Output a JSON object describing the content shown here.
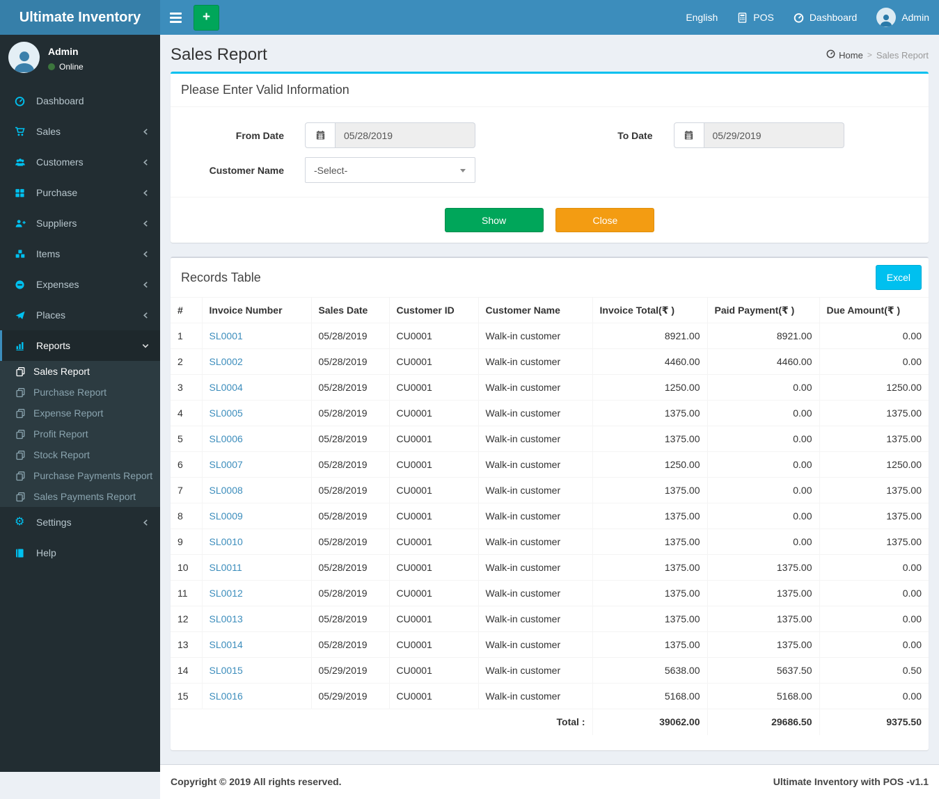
{
  "navbar": {
    "brand": "Ultimate Inventory",
    "items": [
      {
        "key": "language",
        "label": "English",
        "icon": null
      },
      {
        "key": "pos",
        "label": "POS",
        "icon": "calculator"
      },
      {
        "key": "dashboard",
        "label": "Dashboard",
        "icon": "tachometer"
      },
      {
        "key": "admin",
        "label": "Admin",
        "icon": "user-avatar"
      }
    ]
  },
  "sidebar": {
    "user": {
      "name": "Admin",
      "status": "Online"
    },
    "items": [
      {
        "key": "dashboard",
        "label": "Dashboard",
        "icon": "tachometer"
      },
      {
        "key": "sales",
        "label": "Sales",
        "icon": "cart",
        "chevron": "left"
      },
      {
        "key": "customers",
        "label": "Customers",
        "icon": "users",
        "chevron": "left"
      },
      {
        "key": "purchase",
        "label": "Purchase",
        "icon": "grid",
        "chevron": "left"
      },
      {
        "key": "suppliers",
        "label": "Suppliers",
        "icon": "user-plus",
        "chevron": "left"
      },
      {
        "key": "items",
        "label": "Items",
        "icon": "cubes",
        "chevron": "left"
      },
      {
        "key": "expenses",
        "label": "Expenses",
        "icon": "minus-circle",
        "chevron": "left"
      },
      {
        "key": "places",
        "label": "Places",
        "icon": "paper-plane",
        "chevron": "left"
      },
      {
        "key": "reports",
        "label": "Reports",
        "icon": "bar-chart",
        "chevron": "down",
        "active": true,
        "submenu": [
          {
            "key": "sales-report",
            "label": "Sales Report",
            "icon": "copy",
            "active": true
          },
          {
            "key": "purchase-report",
            "label": "Purchase Report",
            "icon": "copy"
          },
          {
            "key": "expense-report",
            "label": "Expense Report",
            "icon": "copy"
          },
          {
            "key": "profit-report",
            "label": "Profit Report",
            "icon": "copy"
          },
          {
            "key": "stock-report",
            "label": "Stock Report",
            "icon": "copy"
          },
          {
            "key": "purchase-payments-report",
            "label": "Purchase Payments Report",
            "icon": "copy"
          },
          {
            "key": "sales-payments-report",
            "label": "Sales Payments Report",
            "icon": "copy"
          }
        ]
      },
      {
        "key": "settings",
        "label": "Settings",
        "icon": "gears",
        "chevron": "left"
      },
      {
        "key": "help",
        "label": "Help",
        "icon": "book"
      }
    ]
  },
  "page": {
    "title": "Sales Report",
    "breadcrumb": {
      "home": "Home",
      "separator": ">",
      "current": "Sales Report"
    }
  },
  "filter": {
    "title": "Please Enter Valid Information",
    "from_date": {
      "label": "From Date",
      "value": "05/28/2019"
    },
    "to_date": {
      "label": "To Date",
      "value": "05/29/2019"
    },
    "customer": {
      "label": "Customer Name",
      "value": "-Select-"
    },
    "show_label": "Show",
    "close_label": "Close"
  },
  "records": {
    "title": "Records Table",
    "excel_label": "Excel",
    "columns": [
      "#",
      "Invoice Number",
      "Sales Date",
      "Customer ID",
      "Customer Name",
      "Invoice Total(₹ )",
      "Paid Payment(₹ )",
      "Due Amount(₹ )"
    ],
    "rows": [
      {
        "n": "1",
        "invoice": "SL0001",
        "date": "05/28/2019",
        "customer_id": "CU0001",
        "customer_name": "Walk-in customer",
        "invoice_total": "8921.00",
        "paid": "8921.00",
        "due": "0.00"
      },
      {
        "n": "2",
        "invoice": "SL0002",
        "date": "05/28/2019",
        "customer_id": "CU0001",
        "customer_name": "Walk-in customer",
        "invoice_total": "4460.00",
        "paid": "4460.00",
        "due": "0.00"
      },
      {
        "n": "3",
        "invoice": "SL0004",
        "date": "05/28/2019",
        "customer_id": "CU0001",
        "customer_name": "Walk-in customer",
        "invoice_total": "1250.00",
        "paid": "0.00",
        "due": "1250.00"
      },
      {
        "n": "4",
        "invoice": "SL0005",
        "date": "05/28/2019",
        "customer_id": "CU0001",
        "customer_name": "Walk-in customer",
        "invoice_total": "1375.00",
        "paid": "0.00",
        "due": "1375.00"
      },
      {
        "n": "5",
        "invoice": "SL0006",
        "date": "05/28/2019",
        "customer_id": "CU0001",
        "customer_name": "Walk-in customer",
        "invoice_total": "1375.00",
        "paid": "0.00",
        "due": "1375.00"
      },
      {
        "n": "6",
        "invoice": "SL0007",
        "date": "05/28/2019",
        "customer_id": "CU0001",
        "customer_name": "Walk-in customer",
        "invoice_total": "1250.00",
        "paid": "0.00",
        "due": "1250.00"
      },
      {
        "n": "7",
        "invoice": "SL0008",
        "date": "05/28/2019",
        "customer_id": "CU0001",
        "customer_name": "Walk-in customer",
        "invoice_total": "1375.00",
        "paid": "0.00",
        "due": "1375.00"
      },
      {
        "n": "8",
        "invoice": "SL0009",
        "date": "05/28/2019",
        "customer_id": "CU0001",
        "customer_name": "Walk-in customer",
        "invoice_total": "1375.00",
        "paid": "0.00",
        "due": "1375.00"
      },
      {
        "n": "9",
        "invoice": "SL0010",
        "date": "05/28/2019",
        "customer_id": "CU0001",
        "customer_name": "Walk-in customer",
        "invoice_total": "1375.00",
        "paid": "0.00",
        "due": "1375.00"
      },
      {
        "n": "10",
        "invoice": "SL0011",
        "date": "05/28/2019",
        "customer_id": "CU0001",
        "customer_name": "Walk-in customer",
        "invoice_total": "1375.00",
        "paid": "1375.00",
        "due": "0.00"
      },
      {
        "n": "11",
        "invoice": "SL0012",
        "date": "05/28/2019",
        "customer_id": "CU0001",
        "customer_name": "Walk-in customer",
        "invoice_total": "1375.00",
        "paid": "1375.00",
        "due": "0.00"
      },
      {
        "n": "12",
        "invoice": "SL0013",
        "date": "05/28/2019",
        "customer_id": "CU0001",
        "customer_name": "Walk-in customer",
        "invoice_total": "1375.00",
        "paid": "1375.00",
        "due": "0.00"
      },
      {
        "n": "13",
        "invoice": "SL0014",
        "date": "05/28/2019",
        "customer_id": "CU0001",
        "customer_name": "Walk-in customer",
        "invoice_total": "1375.00",
        "paid": "1375.00",
        "due": "0.00"
      },
      {
        "n": "14",
        "invoice": "SL0015",
        "date": "05/29/2019",
        "customer_id": "CU0001",
        "customer_name": "Walk-in customer",
        "invoice_total": "5638.00",
        "paid": "5637.50",
        "due": "0.50"
      },
      {
        "n": "15",
        "invoice": "SL0016",
        "date": "05/29/2019",
        "customer_id": "CU0001",
        "customer_name": "Walk-in customer",
        "invoice_total": "5168.00",
        "paid": "5168.00",
        "due": "0.00"
      }
    ],
    "total_label": "Total :",
    "totals": {
      "invoice_total": "39062.00",
      "paid": "29686.50",
      "due": "9375.50"
    }
  },
  "footer": {
    "left": "Copyright © 2019 All rights reserved.",
    "right": "Ultimate Inventory with POS -v1.1"
  },
  "colors": {
    "navbar": "#3c8dbc",
    "logo_bg": "#367fa9",
    "sidebar_bg": "#222d32",
    "submenu_bg": "#2c3b41",
    "icon_accent": "#00c0ef",
    "panel_accent": "#00c0ef",
    "show_button": "#00a65a",
    "close_button": "#f39c12",
    "excel_button": "#00c0ef",
    "link": "#3c8dbc",
    "online_dot": "#3c763d"
  }
}
